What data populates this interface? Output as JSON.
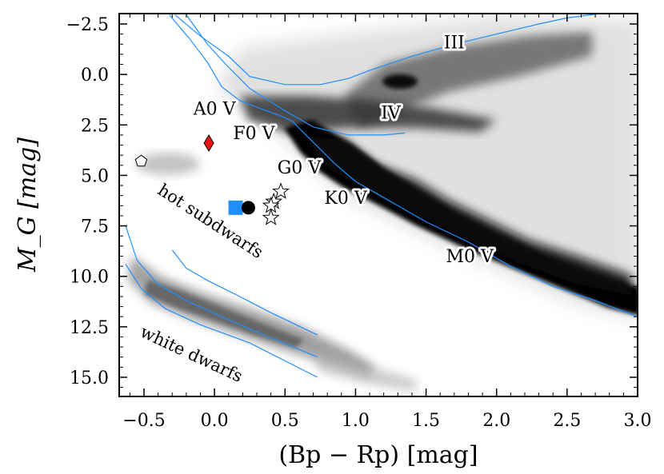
{
  "chart_data": {
    "type": "scatter",
    "subtype": "color-magnitude diagram (Hertzsprung-Russell)",
    "xlabel": "(Bp − Rp) [mag]",
    "ylabel": "M_G [mag]",
    "xlim": [
      -0.68,
      3.0
    ],
    "ylim": [
      16.0,
      -3.0
    ],
    "y_inverted": true,
    "xticks": [
      -0.5,
      0.0,
      0.5,
      1.0,
      1.5,
      2.0,
      2.5,
      3.0
    ],
    "xtick_labels": [
      "−0.5",
      "0.0",
      "0.5",
      "1.0",
      "1.5",
      "2.0",
      "2.5",
      "3.0"
    ],
    "yticks": [
      -2.5,
      0.0,
      2.5,
      5.0,
      7.5,
      10.0,
      12.5,
      15.0
    ],
    "ytick_labels": [
      "−2.5",
      "0.0",
      "2.5",
      "5.0",
      "7.5",
      "10.0",
      "12.5",
      "15.0"
    ],
    "background_density": "grey-scale 2D histogram of field stars (main sequence, giant branch, hot subdwarfs, white dwarf sequence)",
    "spectral_type_labels": [
      {
        "text": "A0 V",
        "x": 0.0,
        "y": 2.0
      },
      {
        "text": "F0 V",
        "x": 0.28,
        "y": 3.2
      },
      {
        "text": "G0 V",
        "x": 0.6,
        "y": 4.9
      },
      {
        "text": "K0 V",
        "x": 0.93,
        "y": 6.4
      },
      {
        "text": "M0 V",
        "x": 1.81,
        "y": 9.3
      },
      {
        "text": "IV",
        "x": 1.25,
        "y": 2.2
      },
      {
        "text": "III",
        "x": 1.7,
        "y": -1.3
      }
    ],
    "region_labels": [
      {
        "text": "hot subdwarfs",
        "x": -0.05,
        "y": 7.5,
        "angle": 33
      },
      {
        "text": "white dwarfs",
        "x": -0.18,
        "y": 14.1,
        "angle": 25
      }
    ],
    "markers": [
      {
        "name": "red-diamond",
        "shape": "diamond",
        "color": "#ee1111",
        "x": -0.04,
        "y": 3.4
      },
      {
        "name": "white-pentagon",
        "shape": "pentagon",
        "color": "#ffffff",
        "x": -0.52,
        "y": 4.3
      },
      {
        "name": "blue-square",
        "shape": "square",
        "color": "#1f8fff",
        "x": 0.15,
        "y": 6.6
      },
      {
        "name": "black-circle",
        "shape": "circle",
        "color": "#000000",
        "x": 0.24,
        "y": 6.6
      },
      {
        "name": "star-1",
        "shape": "star",
        "color": "#ffffff",
        "x": 0.47,
        "y": 5.8
      },
      {
        "name": "star-2",
        "shape": "star",
        "color": "#ffffff",
        "x": 0.42,
        "y": 6.3
      },
      {
        "name": "star-3",
        "shape": "star",
        "color": "#ffffff",
        "x": 0.4,
        "y": 6.5
      },
      {
        "name": "star-4",
        "shape": "star",
        "color": "#ffffff",
        "x": 0.4,
        "y": 7.1
      }
    ],
    "series": [
      {
        "name": "isochrone-1",
        "color": "#1f8fff",
        "points": [
          [
            -0.32,
            -2.95
          ],
          [
            -0.18,
            -1.8
          ],
          [
            -0.05,
            -0.6
          ],
          [
            0.05,
            0.6
          ],
          [
            0.18,
            1.3
          ],
          [
            0.33,
            1.7
          ],
          [
            0.45,
            2.0
          ],
          [
            0.55,
            2.3
          ],
          [
            0.62,
            2.8
          ],
          [
            0.72,
            3.5
          ],
          [
            0.85,
            4.4
          ],
          [
            1.0,
            5.3
          ],
          [
            1.2,
            6.1
          ],
          [
            1.5,
            7.3
          ],
          [
            1.8,
            8.3
          ],
          [
            2.1,
            9.5
          ],
          [
            2.4,
            10.5
          ],
          [
            2.7,
            11.2
          ],
          [
            3.0,
            12.0
          ]
        ]
      },
      {
        "name": "isochrone-2",
        "color": "#1f8fff",
        "points": [
          [
            -0.2,
            -2.95
          ],
          [
            -0.05,
            -1.5
          ],
          [
            0.08,
            -0.5
          ],
          [
            0.25,
            0.7
          ],
          [
            0.5,
            1.8
          ],
          [
            0.7,
            2.6
          ],
          [
            0.95,
            3.0
          ],
          [
            1.2,
            3.0
          ],
          [
            1.35,
            2.9
          ]
        ]
      },
      {
        "name": "isochrone-3",
        "color": "#1f8fff",
        "points": [
          [
            -0.28,
            -2.95
          ],
          [
            -0.1,
            -1.9
          ],
          [
            0.1,
            -0.9
          ],
          [
            0.25,
            0.1
          ],
          [
            0.5,
            0.5
          ],
          [
            0.75,
            0.5
          ],
          [
            0.95,
            0.2
          ],
          [
            1.1,
            -0.2
          ],
          [
            1.4,
            -0.9
          ],
          [
            1.7,
            -1.5
          ],
          [
            2.0,
            -2.0
          ],
          [
            2.3,
            -2.5
          ],
          [
            2.5,
            -2.8
          ],
          [
            2.72,
            -3.0
          ]
        ]
      },
      {
        "name": "white-dwarf-track-1",
        "color": "#1f8fff",
        "points": [
          [
            -0.3,
            8.7
          ],
          [
            -0.2,
            9.6
          ],
          [
            -0.05,
            10.2
          ],
          [
            0.15,
            10.9
          ],
          [
            0.4,
            11.8
          ],
          [
            0.73,
            12.9
          ]
        ]
      },
      {
        "name": "white-dwarf-track-2",
        "color": "#1f8fff",
        "points": [
          [
            -0.63,
            7.5
          ],
          [
            -0.55,
            9.2
          ],
          [
            -0.4,
            10.4
          ],
          [
            -0.2,
            11.2
          ],
          [
            0.05,
            12.0
          ],
          [
            0.35,
            12.9
          ],
          [
            0.73,
            14.0
          ]
        ]
      },
      {
        "name": "white-dwarf-track-3",
        "color": "#1f8fff",
        "points": [
          [
            -0.63,
            9.4
          ],
          [
            -0.52,
            10.6
          ],
          [
            -0.35,
            11.6
          ],
          [
            -0.1,
            12.4
          ],
          [
            0.25,
            13.3
          ],
          [
            0.73,
            15.0
          ]
        ]
      }
    ]
  }
}
